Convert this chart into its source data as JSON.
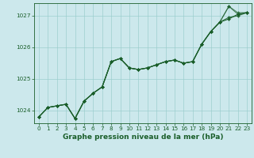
{
  "title": "Graphe pression niveau de la mer (hPa)",
  "bg_color": "#cce8ec",
  "plot_bg": "#cce8ec",
  "grid_color": "#99cccc",
  "line_color": "#1a5e2a",
  "xlim": [
    -0.5,
    23.5
  ],
  "ylim": [
    1023.6,
    1027.4
  ],
  "yticks": [
    1024,
    1025,
    1026,
    1027
  ],
  "xticks": [
    0,
    1,
    2,
    3,
    4,
    5,
    6,
    7,
    8,
    9,
    10,
    11,
    12,
    13,
    14,
    15,
    16,
    17,
    18,
    19,
    20,
    21,
    22,
    23
  ],
  "series": [
    [
      1023.8,
      1024.1,
      1024.15,
      1024.2,
      1023.75,
      1024.3,
      1024.55,
      1024.75,
      1025.55,
      1025.65,
      1025.35,
      1025.3,
      1025.35,
      1025.45,
      1025.55,
      1025.6,
      1025.5,
      1025.55,
      1026.1,
      1026.5,
      1026.8,
      1026.9,
      1027.05,
      1027.1
    ],
    [
      1023.8,
      1024.1,
      1024.15,
      1024.2,
      1023.75,
      1024.3,
      1024.55,
      1024.75,
      1025.55,
      1025.65,
      1025.35,
      1025.3,
      1025.35,
      1025.45,
      1025.55,
      1025.6,
      1025.5,
      1025.55,
      1026.1,
      1026.5,
      1026.8,
      1026.95,
      1027.0,
      1027.1
    ],
    [
      1023.8,
      1024.1,
      1024.15,
      1024.2,
      1023.75,
      1024.3,
      1024.55,
      1024.75,
      1025.55,
      1025.65,
      1025.35,
      1025.3,
      1025.35,
      1025.45,
      1025.55,
      1025.6,
      1025.5,
      1025.55,
      1026.1,
      1026.5,
      1026.8,
      1027.3,
      1027.05,
      1027.1
    ],
    [
      1023.8,
      1024.1,
      1024.15,
      1024.2,
      1023.75,
      1024.3,
      1024.55,
      1024.75,
      1025.55,
      1025.65,
      1025.35,
      1025.3,
      1025.35,
      1025.45,
      1025.55,
      1025.6,
      1025.5,
      1025.55,
      1026.1,
      1026.5,
      1026.8,
      1027.3,
      1027.1,
      1027.1
    ]
  ],
  "marker_size": 2.0,
  "line_width": 0.8,
  "tick_fontsize": 5.2,
  "label_fontsize": 6.5,
  "label_fontweight": "bold"
}
